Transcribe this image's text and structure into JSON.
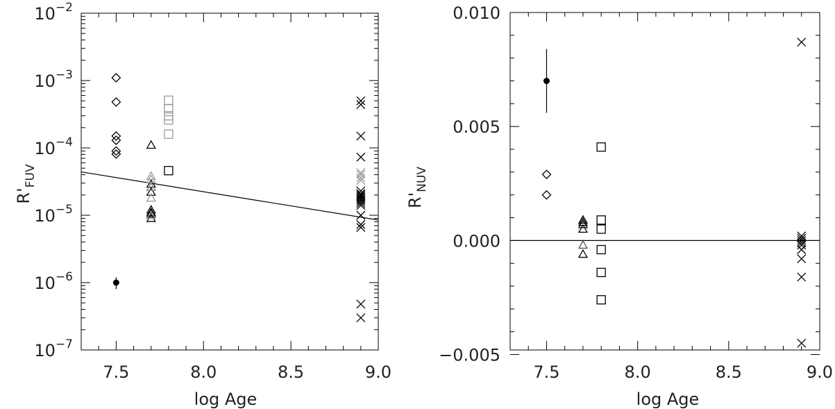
{
  "chart_data": [
    {
      "type": "scatter",
      "panel": "left",
      "xlabel": "log Age",
      "ylabel_main": "R'",
      "ylabel_sub": "FUV",
      "xlim": [
        7.3,
        9.0
      ],
      "ylim": [
        1e-07,
        0.01
      ],
      "yscale": "log",
      "xticks": [
        7.5,
        8.0,
        8.5,
        9.0
      ],
      "xtick_labels": [
        "7.5",
        "8.0",
        "8.5",
        "9.0"
      ],
      "yticks": [
        {
          "value": 1e-07,
          "base": "10",
          "exp": "−7"
        },
        {
          "value": 1e-06,
          "base": "10",
          "exp": "−6"
        },
        {
          "value": 1e-05,
          "base": "10",
          "exp": "−5"
        },
        {
          "value": 0.0001,
          "base": "10",
          "exp": "−4"
        },
        {
          "value": 0.001,
          "base": "10",
          "exp": "−3"
        },
        {
          "value": 0.01,
          "base": "10",
          "exp": "−2"
        }
      ],
      "fit_line": {
        "x": [
          7.3,
          9.0
        ],
        "y": [
          4.4e-05,
          8.5e-06
        ]
      },
      "series": [
        {
          "marker": "diamond",
          "color": "#000000",
          "x": [
            7.5,
            7.5,
            7.5,
            7.5,
            7.5,
            7.5
          ],
          "y": [
            0.0011,
            0.00048,
            0.00015,
            0.00013,
            9e-05,
            8.1e-05
          ]
        },
        {
          "marker": "dot",
          "color": "#000000",
          "x": [
            7.5
          ],
          "y": [
            1e-06
          ],
          "err_low": [
            8e-07
          ],
          "err_high": [
            1.2e-06
          ]
        },
        {
          "marker": "triangle",
          "color": "#000000",
          "x": [
            7.7,
            7.7,
            7.7,
            7.7,
            7.7,
            7.7,
            7.7,
            7.7,
            7.7
          ],
          "y": [
            0.00011,
            2.9e-05,
            2.6e-05,
            2.2e-05,
            1.2e-05,
            1.1e-05,
            1.05e-05,
            1e-05,
            9e-06
          ]
        },
        {
          "marker": "triangle",
          "color": "#999999",
          "x": [
            7.7,
            7.7,
            7.7,
            7.7,
            7.7
          ],
          "y": [
            3.8e-05,
            3.4e-05,
            2.6e-05,
            1.8e-05,
            1e-05
          ]
        },
        {
          "marker": "square",
          "color": "#000000",
          "x": [
            7.8
          ],
          "y": [
            4.6e-05
          ]
        },
        {
          "marker": "square",
          "color": "#999999",
          "x": [
            7.8,
            7.8,
            7.8,
            7.8,
            7.8
          ],
          "y": [
            0.00051,
            0.00038,
            0.0003,
            0.00026,
            0.00016
          ]
        },
        {
          "marker": "cross",
          "color": "#000000",
          "x": [
            8.9,
            8.9,
            8.9,
            8.9,
            8.9,
            8.9,
            8.9,
            8.9,
            8.9,
            8.9,
            8.9,
            8.9,
            8.9,
            8.9,
            8.9,
            8.9,
            8.9,
            8.9
          ],
          "y": [
            0.0005,
            0.00044,
            0.00015,
            7.3e-05,
            2.3e-05,
            2.1e-05,
            1.9e-05,
            1.8e-05,
            1.7e-05,
            1.6e-05,
            1.5e-05,
            1.4e-05,
            1e-05,
            7.3e-06,
            6.6e-06,
            4.8e-07,
            3e-07,
            2e-05
          ]
        },
        {
          "marker": "cross",
          "color": "#999999",
          "x": [
            8.9,
            8.9,
            8.9,
            8.9
          ],
          "y": [
            4.3e-05,
            4e-05,
            3.6e-05,
            3.3e-05
          ]
        }
      ]
    },
    {
      "type": "scatter",
      "panel": "right",
      "xlabel": "log Age",
      "ylabel_main": "R'",
      "ylabel_sub": "NUV",
      "xlim": [
        7.3,
        9.0
      ],
      "ylim": [
        -0.0048,
        0.01
      ],
      "yscale": "linear",
      "xticks": [
        7.5,
        8.0,
        8.5,
        9.0
      ],
      "xtick_labels": [
        "7.5",
        "8.0",
        "8.5",
        "9.0"
      ],
      "yticks": [
        -0.005,
        0.0,
        0.005,
        0.01
      ],
      "ytick_labels": [
        "−0.005",
        "0.000",
        "0.005",
        "0.010"
      ],
      "fit_line": {
        "x": [
          7.3,
          9.0
        ],
        "y": [
          0.0,
          0.0
        ]
      },
      "series": [
        {
          "marker": "dot",
          "color": "#000000",
          "x": [
            7.5
          ],
          "y": [
            0.007
          ],
          "err_low": [
            0.0056
          ],
          "err_high": [
            0.0084
          ]
        },
        {
          "marker": "diamond",
          "color": "#000000",
          "x": [
            7.5,
            7.5
          ],
          "y": [
            0.0029,
            0.002
          ]
        },
        {
          "marker": "triangle",
          "color": "#000000",
          "x": [
            7.7,
            7.7,
            7.7,
            7.7,
            7.7
          ],
          "y": [
            0.0009,
            0.0008,
            0.0007,
            0.0005,
            -0.0006
          ]
        },
        {
          "marker": "triangle",
          "color": "#555555",
          "x": [
            7.7
          ],
          "y": [
            -0.0002
          ]
        },
        {
          "marker": "square",
          "color": "#000000",
          "x": [
            7.8,
            7.8,
            7.8,
            7.8,
            7.8,
            7.8
          ],
          "y": [
            0.0041,
            0.0009,
            0.0005,
            -0.0004,
            -0.0014,
            -0.0026
          ]
        },
        {
          "marker": "cross",
          "color": "#000000",
          "x": [
            8.9,
            8.9,
            8.9,
            8.9,
            8.9,
            8.9,
            8.9,
            8.9,
            8.9,
            8.9
          ],
          "y": [
            0.0087,
            0.0002,
            0.0001,
            0.0,
            -0.0001,
            -0.0002,
            -0.0004,
            -0.0008,
            -0.0016,
            -0.0045
          ]
        }
      ]
    }
  ]
}
